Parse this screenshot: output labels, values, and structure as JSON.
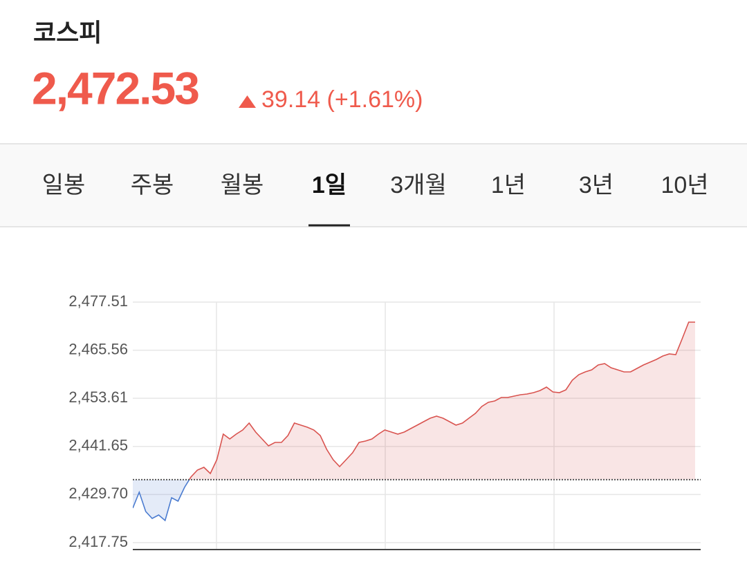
{
  "header": {
    "title": "코스피",
    "price": "2,472.53",
    "change": "39.14 (+1.61%)"
  },
  "tabs": {
    "items": [
      "일봉",
      "주봉",
      "월봉",
      "1일",
      "3개월",
      "1년",
      "3년",
      "10년"
    ],
    "selected": 3
  },
  "chart_data": {
    "type": "line",
    "values": [
      2426.34,
      2430.29,
      2425.48,
      2423.76,
      2424.62,
      2423.25,
      2428.91,
      2428.05,
      2431.49,
      2434.06,
      2435.78,
      2436.47,
      2434.92,
      2438.36,
      2444.71,
      2443.51,
      2444.71,
      2445.74,
      2447.46,
      2445.23,
      2443.51,
      2441.79,
      2442.65,
      2442.65,
      2444.37,
      2447.46,
      2446.94,
      2446.43,
      2445.74,
      2444.37,
      2440.93,
      2438.36,
      2436.64,
      2438.36,
      2440.07,
      2442.65,
      2442.99,
      2443.51,
      2444.71,
      2445.74,
      2445.23,
      2444.71,
      2445.23,
      2446.09,
      2446.94,
      2447.8,
      2448.66,
      2449.18,
      2448.66,
      2447.8,
      2446.94,
      2447.46,
      2448.66,
      2449.86,
      2451.58,
      2452.61,
      2452.95,
      2453.81,
      2453.81,
      2454.16,
      2454.5,
      2454.67,
      2455.01,
      2455.53,
      2456.39,
      2455.19,
      2455.01,
      2455.7,
      2458.11,
      2459.48,
      2460.17,
      2460.68,
      2461.88,
      2462.23,
      2461.2,
      2460.68,
      2460.17,
      2460.17,
      2461.02,
      2461.88,
      2462.57,
      2463.26,
      2464.12,
      2464.63,
      2464.46,
      2468.41,
      2472.53,
      2472.53
    ],
    "reference_line": 2433.39,
    "up_color": "#d9534f",
    "down_color": "#4a7bd0",
    "ylim": [
      2416.03,
      2477.51
    ],
    "yticks": [
      {
        "value": 2417.75,
        "label": "2,417.75"
      },
      {
        "value": 2429.7,
        "label": "2,429.70"
      },
      {
        "value": 2441.65,
        "label": "2,441.65"
      },
      {
        "value": 2453.61,
        "label": "2,453.61"
      },
      {
        "value": 2465.56,
        "label": "2,465.56"
      },
      {
        "value": 2477.51,
        "label": "2,477.51"
      }
    ],
    "grid": true
  }
}
